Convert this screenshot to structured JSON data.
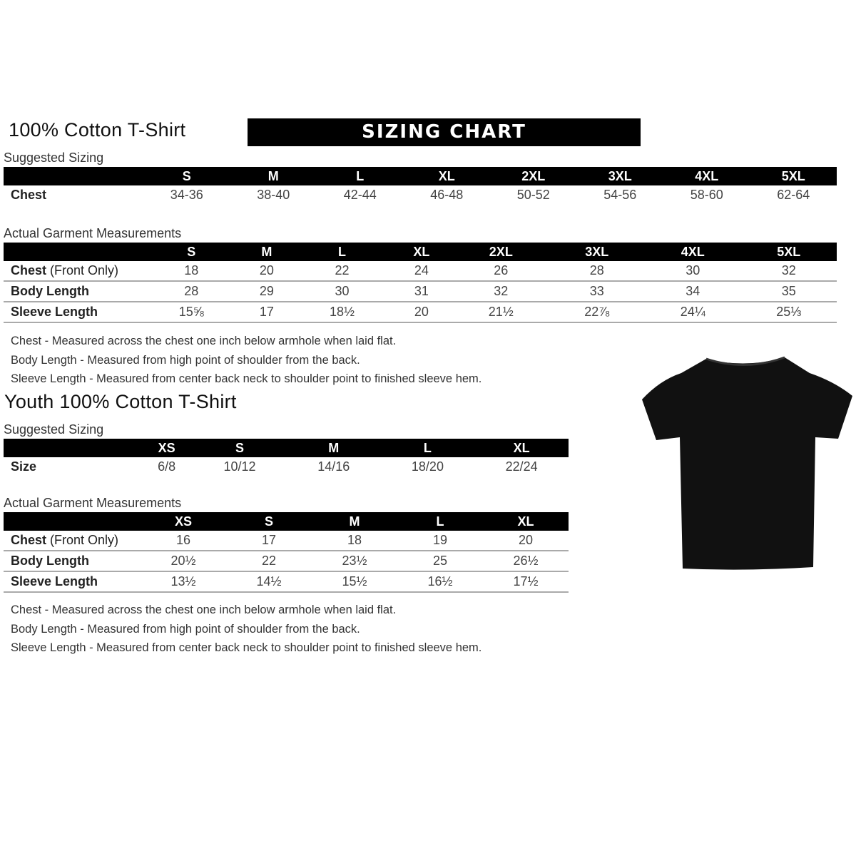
{
  "adult": {
    "title": "100% Cotton T-Shirt",
    "banner": "SIZING CHART",
    "suggested_label": "Suggested Sizing",
    "sizes": [
      "S",
      "M",
      "L",
      "XL",
      "2XL",
      "3XL",
      "4XL",
      "5XL"
    ],
    "suggested_rows": [
      {
        "label": "Chest",
        "values": [
          "34-36",
          "38-40",
          "42-44",
          "46-48",
          "50-52",
          "54-56",
          "58-60",
          "62-64"
        ]
      }
    ],
    "actual_label": "Actual Garment Measurements",
    "actual_rows": [
      {
        "label": "Chest",
        "label_extra": "(Front Only)",
        "values": [
          "18",
          "20",
          "22",
          "24",
          "26",
          "28",
          "30",
          "32"
        ]
      },
      {
        "label": "Body Length",
        "values": [
          "28",
          "29",
          "30",
          "31",
          "32",
          "33",
          "34",
          "35"
        ]
      },
      {
        "label": "Sleeve Length",
        "values": [
          "15⅝",
          "17",
          "18½",
          "20",
          "21½",
          "22⅞",
          "24¼",
          "25⅓"
        ]
      }
    ],
    "notes": [
      "Chest - Measured across the chest one inch below armhole when laid flat.",
      "Body Length - Measured from high point of shoulder from the back.",
      "Sleeve Length - Measured from center back neck to shoulder point to finished sleeve hem."
    ]
  },
  "youth": {
    "title": "Youth 100% Cotton T-Shirt",
    "suggested_label": "Suggested Sizing",
    "sizes": [
      "XS",
      "S",
      "M",
      "L",
      "XL"
    ],
    "suggested_rows": [
      {
        "label": "Size",
        "values": [
          "6/8",
          "10/12",
          "14/16",
          "18/20",
          "22/24"
        ]
      }
    ],
    "actual_label": "Actual Garment Measurements",
    "actual_rows": [
      {
        "label": "Chest",
        "label_extra": "(Front Only)",
        "values": [
          "16",
          "17",
          "18",
          "19",
          "20"
        ]
      },
      {
        "label": "Body Length",
        "values": [
          "20½",
          "22",
          "23½",
          "25",
          "26½"
        ]
      },
      {
        "label": "Sleeve Length",
        "values": [
          "13½",
          "14½",
          "15½",
          "16½",
          "17½"
        ]
      }
    ],
    "notes": [
      "Chest - Measured across the chest one inch below armhole when laid flat.",
      "Body Length - Measured from high point of shoulder from the back.",
      "Sleeve Length - Measured from center back neck to shoulder point to finished sleeve hem."
    ]
  },
  "tshirt_color": "#111111"
}
